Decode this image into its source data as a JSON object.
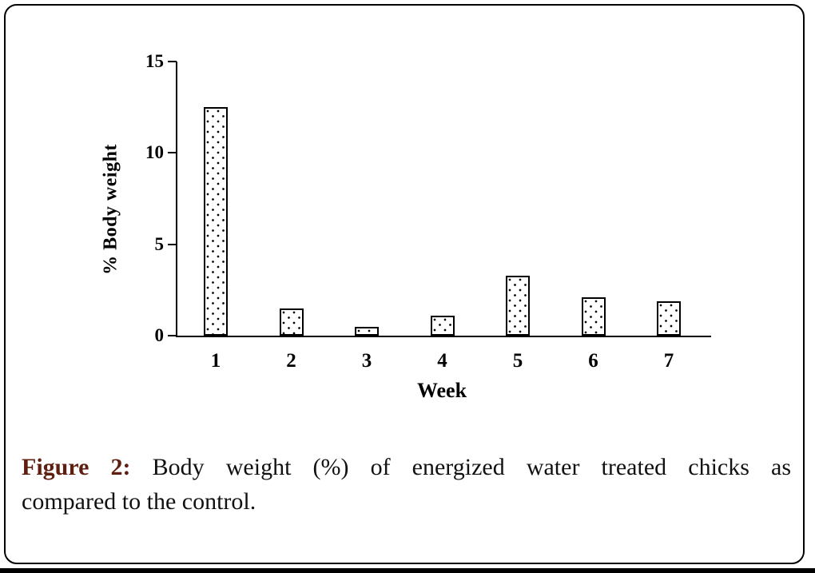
{
  "figure": {
    "caption": {
      "label": "Figure 2:",
      "line1_rest": "Body weight (%) of energized water treated chicks as",
      "line2": "compared to the control.",
      "label_color": "#5f1f10",
      "text_color": "#111111"
    }
  },
  "chart_data": {
    "type": "bar",
    "title": "",
    "categories": [
      "1",
      "2",
      "3",
      "4",
      "5",
      "6",
      "7"
    ],
    "values": [
      12.5,
      1.5,
      0.5,
      1.1,
      3.3,
      2.1,
      1.9
    ],
    "xlabel": "Week",
    "ylabel": "% Body weight",
    "yticks": [
      0,
      5,
      10,
      15
    ],
    "ylim": [
      0,
      15
    ],
    "grid": false,
    "legend": false,
    "bar_fill_pattern": "black-dot-stipple-on-white",
    "bar_border_color": "#000000",
    "axis_color": "#000000"
  },
  "colors": {
    "background": "#ffffff",
    "frame_border": "#000000",
    "bottom_rule": "#000000",
    "text": "#000000"
  }
}
